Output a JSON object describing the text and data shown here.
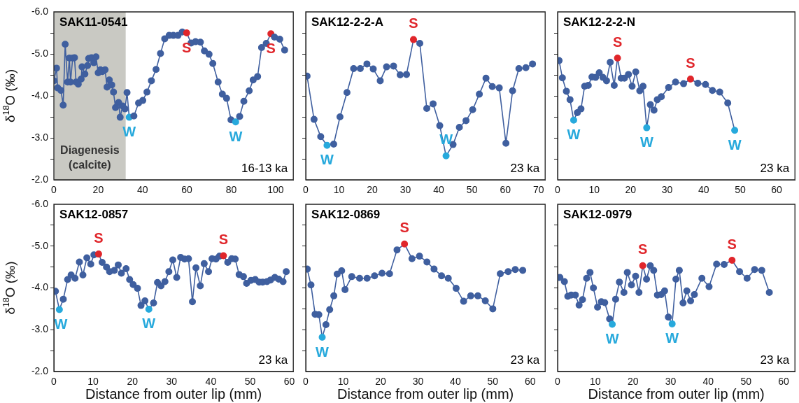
{
  "chart_data": [
    {
      "type": "line",
      "title": "SAK11-0541",
      "ylabel": "δ$^{18}$O (‰)",
      "marker": "circle",
      "xlim": [
        0,
        108
      ],
      "xticks": [
        0,
        20,
        40,
        60,
        80,
        100
      ],
      "ylim": [
        -2,
        -6
      ],
      "yticks": [
        {
          "value": -6,
          "label": "-6.0"
        },
        {
          "value": -5.5,
          "label": null
        },
        {
          "value": -5,
          "label": "-5.0"
        },
        {
          "value": -4.5,
          "label": null
        },
        {
          "value": -4,
          "label": "-4.0"
        },
        {
          "value": -3.5,
          "label": null
        },
        {
          "value": -3,
          "label": "-3.0"
        },
        {
          "value": -2.5,
          "label": null
        },
        {
          "value": -2,
          "label": "-2.0"
        }
      ],
      "bands": [
        {
          "axis": "x",
          "from": 0,
          "to": 32.4,
          "label": "Diagenesis (calcite)",
          "color": "#c9c9c3"
        }
      ],
      "annotations": [
        {
          "text": "S",
          "x": 59.9,
          "y": -5.5
        },
        {
          "text": "S",
          "x": 97.9,
          "y": -5.48
        },
        {
          "text": "W",
          "x": 34.0,
          "y": -3.49
        },
        {
          "text": "W",
          "x": 82.0,
          "y": -3.38
        },
        "16-13 ka"
      ],
      "series": [
        {
          "color": "#3f5f9f",
          "x": [
            0,
            1.2,
            1.7,
            3.2,
            4.2,
            5.1,
            6.2,
            7.0,
            7.5,
            8.5,
            9.3,
            10.0,
            11.0,
            12.3,
            12.7,
            14.0,
            15.2,
            15.7,
            17.0,
            18.0,
            19.0,
            20.0,
            21.0,
            21.9,
            23.1,
            24.0,
            25.0,
            26.1,
            26.9,
            27.8,
            29.2,
            29.9,
            31.0,
            32.1,
            33.0,
            34.0,
            36.1,
            38.2,
            40.1,
            42.0,
            44.0,
            46.1,
            48.1,
            50.0,
            52.0,
            53.9,
            56.0,
            57.9,
            59.9,
            61.9,
            63.9,
            66.1,
            67.9,
            70.0,
            71.7,
            74.1,
            76.0,
            77.9,
            79.9,
            82.0,
            83.8,
            85.7,
            88.1,
            89.9,
            91.9,
            93.7,
            95.8,
            97.9,
            99.5,
            101.9,
            104.1
          ],
          "values": [
            -4.36,
            -4.66,
            -4.19,
            -4.13,
            -3.78,
            -5.23,
            -4.33,
            -4.9,
            -4.33,
            -4.9,
            -4.91,
            -4.33,
            -4.28,
            -4.4,
            -4.69,
            -4.52,
            -4.72,
            -4.89,
            -4.91,
            -4.79,
            -4.93,
            -4.55,
            -4.62,
            -4.58,
            -4.62,
            -4.21,
            -4.38,
            -4.26,
            -4.09,
            -3.72,
            -3.84,
            -3.49,
            -3.76,
            -3.69,
            -4.08,
            -3.49,
            -3.52,
            -3.83,
            -3.89,
            -4.09,
            -4.36,
            -4.63,
            -5.01,
            -5.36,
            -5.44,
            -5.44,
            -5.44,
            -5.52,
            -5.5,
            -5.26,
            -5.29,
            -5.28,
            -5.07,
            -4.99,
            -4.77,
            -4.33,
            -4.04,
            -3.94,
            -3.43,
            -3.38,
            -3.51,
            -3.87,
            -4.12,
            -4.38,
            -4.46,
            -5.15,
            -5.25,
            -5.48,
            -5.4,
            -5.35,
            -5.09
          ],
          "colors": [
            "#3f5f9f",
            "#3f5f9f",
            "#3f5f9f",
            "#3f5f9f",
            "#3f5f9f",
            "#3f5f9f",
            "#3f5f9f",
            "#3f5f9f",
            "#3f5f9f",
            "#3f5f9f",
            "#3f5f9f",
            "#3f5f9f",
            "#3f5f9f",
            "#3f5f9f",
            "#3f5f9f",
            "#3f5f9f",
            "#3f5f9f",
            "#3f5f9f",
            "#3f5f9f",
            "#3f5f9f",
            "#3f5f9f",
            "#3f5f9f",
            "#3f5f9f",
            "#3f5f9f",
            "#3f5f9f",
            "#3f5f9f",
            "#3f5f9f",
            "#3f5f9f",
            "#3f5f9f",
            "#3f5f9f",
            "#3f5f9f",
            "#3f5f9f",
            "#3f5f9f",
            "#3f5f9f",
            "#3f5f9f",
            "#27a9dc",
            "#3f5f9f",
            "#3f5f9f",
            "#3f5f9f",
            "#3f5f9f",
            "#3f5f9f",
            "#3f5f9f",
            "#3f5f9f",
            "#3f5f9f",
            "#3f5f9f",
            "#3f5f9f",
            "#3f5f9f",
            "#3f5f9f",
            "#e0262b",
            "#3f5f9f",
            "#3f5f9f",
            "#3f5f9f",
            "#3f5f9f",
            "#3f5f9f",
            "#3f5f9f",
            "#3f5f9f",
            "#3f5f9f",
            "#3f5f9f",
            "#3f5f9f",
            "#27a9dc",
            "#3f5f9f",
            "#3f5f9f",
            "#3f5f9f",
            "#3f5f9f",
            "#3f5f9f",
            "#3f5f9f",
            "#3f5f9f",
            "#e0262b",
            "#3f5f9f",
            "#3f5f9f",
            "#3f5f9f"
          ]
        }
      ]
    },
    {
      "type": "line",
      "title": "SAK12-2-2-A",
      "marker": "circle",
      "tick_labels": "x",
      "xlim": [
        0,
        72
      ],
      "xticks": [
        0,
        10,
        20,
        30,
        40,
        50,
        60,
        70
      ],
      "ylim": [
        -2,
        -6
      ],
      "yticks": [
        {
          "value": -6,
          "label": null
        },
        {
          "value": -5.5,
          "label": null
        },
        {
          "value": -5,
          "label": null
        },
        {
          "value": -4.5,
          "label": null
        },
        {
          "value": -4,
          "label": null
        },
        {
          "value": -3.5,
          "label": null
        },
        {
          "value": -3,
          "label": null
        },
        {
          "value": -2.5,
          "label": null
        },
        {
          "value": -2,
          "label": null
        }
      ],
      "annotations": [
        {
          "text": "S",
          "x": 32.4,
          "y": -5.34
        },
        {
          "text": "W",
          "x": 6.4,
          "y": -2.82
        },
        {
          "text": "W",
          "x": 42.2,
          "y": -2.57
        },
        "23 ka"
      ],
      "series": [
        {
          "color": "#3f5f9f",
          "x": [
            0.4,
            2.5,
            4.5,
            6.4,
            8.4,
            10.3,
            12.4,
            14.4,
            16.4,
            18.4,
            20.3,
            22.4,
            24.3,
            26.4,
            28.4,
            30.3,
            32.4,
            34.3,
            36.4,
            38.3,
            40.3,
            42.2,
            44.3,
            46.2,
            48.2,
            50.2,
            52.2,
            54.2,
            56.1,
            58.2,
            60.2,
            62.2,
            64.1,
            66.2,
            68.2
          ],
          "values": [
            -4.47,
            -3.44,
            -3.03,
            -2.82,
            -2.85,
            -3.5,
            -4.08,
            -4.65,
            -4.65,
            -4.76,
            -4.64,
            -4.36,
            -4.69,
            -4.71,
            -4.5,
            -4.51,
            -5.34,
            -5.25,
            -3.7,
            -3.81,
            -3.29,
            -2.57,
            -2.84,
            -3.25,
            -3.41,
            -3.67,
            -4.04,
            -4.42,
            -4.22,
            -4.19,
            -2.87,
            -4.12,
            -4.65,
            -4.67,
            -4.76
          ],
          "colors": [
            "#3f5f9f",
            "#3f5f9f",
            "#3f5f9f",
            "#27a9dc",
            "#3f5f9f",
            "#3f5f9f",
            "#3f5f9f",
            "#3f5f9f",
            "#3f5f9f",
            "#3f5f9f",
            "#3f5f9f",
            "#3f5f9f",
            "#3f5f9f",
            "#3f5f9f",
            "#3f5f9f",
            "#3f5f9f",
            "#e0262b",
            "#3f5f9f",
            "#3f5f9f",
            "#3f5f9f",
            "#3f5f9f",
            "#27a9dc",
            "#3f5f9f",
            "#3f5f9f",
            "#3f5f9f",
            "#3f5f9f",
            "#3f5f9f",
            "#3f5f9f",
            "#3f5f9f",
            "#3f5f9f",
            "#3f5f9f",
            "#3f5f9f",
            "#3f5f9f",
            "#3f5f9f",
            "#3f5f9f"
          ]
        }
      ]
    },
    {
      "type": "line",
      "title": "SAK12-2-2-N",
      "marker": "circle",
      "tick_labels": "x",
      "xlim": [
        0,
        65
      ],
      "xticks": [
        0,
        10,
        20,
        30,
        40,
        50,
        60
      ],
      "ylim": [
        -2,
        -6
      ],
      "yticks": [
        {
          "value": -6,
          "label": null
        },
        {
          "value": -5.5,
          "label": null
        },
        {
          "value": -5,
          "label": null
        },
        {
          "value": -4.5,
          "label": null
        },
        {
          "value": -4,
          "label": null
        },
        {
          "value": -3.5,
          "label": null
        },
        {
          "value": -3,
          "label": null
        },
        {
          "value": -2.5,
          "label": null
        },
        {
          "value": -2,
          "label": null
        }
      ],
      "annotations": [
        {
          "text": "S",
          "x": 16.4,
          "y": -4.9
        },
        {
          "text": "S",
          "x": 36.4,
          "y": -4.4
        },
        {
          "text": "W",
          "x": 4.4,
          "y": -3.42
        },
        {
          "text": "W",
          "x": 24.4,
          "y": -3.24
        },
        {
          "text": "W",
          "x": 48.5,
          "y": -3.18
        },
        "23 ka"
      ],
      "series": [
        {
          "color": "#3f5f9f",
          "x": [
            0.4,
            1.3,
            2.4,
            3.4,
            4.4,
            5.4,
            6.4,
            7.4,
            8.4,
            9.4,
            10.4,
            11.4,
            12.4,
            13.4,
            14.4,
            15.5,
            16.4,
            17.4,
            18.3,
            19.4,
            20.4,
            21.4,
            22.5,
            23.4,
            24.4,
            25.4,
            26.4,
            27.3,
            28.4,
            30.4,
            32.3,
            34.5,
            36.4,
            38.4,
            40.5,
            42.4,
            44.4,
            46.6,
            48.5
          ],
          "values": [
            -4.84,
            -4.43,
            -4.11,
            -3.91,
            -3.42,
            -3.6,
            -3.69,
            -4.23,
            -4.25,
            -4.45,
            -4.44,
            -4.55,
            -4.44,
            -4.36,
            -4.8,
            -4.25,
            -4.9,
            -4.42,
            -4.42,
            -4.51,
            -4.23,
            -4.57,
            -4.12,
            -4.23,
            -3.24,
            -3.79,
            -3.66,
            -3.91,
            -3.98,
            -4.2,
            -4.33,
            -4.29,
            -4.4,
            -4.3,
            -4.27,
            -4.13,
            -4.09,
            -3.83,
            -3.18
          ],
          "colors": [
            "#3f5f9f",
            "#3f5f9f",
            "#3f5f9f",
            "#3f5f9f",
            "#27a9dc",
            "#3f5f9f",
            "#3f5f9f",
            "#3f5f9f",
            "#3f5f9f",
            "#3f5f9f",
            "#3f5f9f",
            "#3f5f9f",
            "#3f5f9f",
            "#3f5f9f",
            "#3f5f9f",
            "#3f5f9f",
            "#e0262b",
            "#3f5f9f",
            "#3f5f9f",
            "#3f5f9f",
            "#3f5f9f",
            "#3f5f9f",
            "#3f5f9f",
            "#3f5f9f",
            "#27a9dc",
            "#3f5f9f",
            "#3f5f9f",
            "#3f5f9f",
            "#3f5f9f",
            "#3f5f9f",
            "#3f5f9f",
            "#3f5f9f",
            "#e0262b",
            "#3f5f9f",
            "#3f5f9f",
            "#3f5f9f",
            "#3f5f9f",
            "#3f5f9f",
            "#27a9dc"
          ]
        }
      ]
    },
    {
      "type": "line",
      "title": "SAK12-0857",
      "ylabel": "δ$^{18}$O (‰)",
      "xlabel": "Distance from outer lip (mm)",
      "marker": "circle",
      "xlim": [
        0,
        61
      ],
      "xticks": [
        0,
        10,
        20,
        30,
        40,
        50,
        60
      ],
      "ylim": [
        -2,
        -6
      ],
      "yticks": [
        {
          "value": -6,
          "label": "-6.0"
        },
        {
          "value": -5.5,
          "label": null
        },
        {
          "value": -5,
          "label": "-5.0"
        },
        {
          "value": -4.5,
          "label": null
        },
        {
          "value": -4,
          "label": "-4.0"
        },
        {
          "value": -3.5,
          "label": null
        },
        {
          "value": -3,
          "label": "-3.0"
        },
        {
          "value": -2.5,
          "label": null
        },
        {
          "value": -2,
          "label": "-2.0"
        }
      ],
      "annotations": [
        {
          "text": "S",
          "x": 11.4,
          "y": -4.81
        },
        {
          "text": "S",
          "x": 43.2,
          "y": -4.77
        },
        {
          "text": "W",
          "x": 1.4,
          "y": -3.48
        },
        {
          "text": "W",
          "x": 24.2,
          "y": -3.49
        },
        "23 ka"
      ],
      "series": [
        {
          "color": "#3f5f9f",
          "x": [
            0.4,
            1.4,
            2.4,
            3.5,
            4.4,
            5.4,
            6.5,
            7.4,
            8.4,
            9.4,
            10.2,
            11.4,
            12.3,
            13.4,
            14.2,
            15.4,
            16.4,
            17.2,
            18.4,
            19.3,
            20.2,
            21.3,
            22.2,
            23.2,
            24.2,
            25.4,
            26.4,
            27.3,
            28.3,
            29.3,
            30.3,
            31.3,
            32.3,
            33.3,
            34.3,
            35.3,
            36.2,
            37.3,
            38.3,
            39.4,
            40.3,
            41.3,
            42.2,
            43.2,
            44.3,
            45.3,
            46.2,
            47.2,
            48.3,
            49.1,
            50.2,
            51.3,
            52.3,
            53.2,
            54.3,
            55.2,
            56.3,
            57.3,
            58.4,
            59.2
          ],
          "values": [
            -3.92,
            -3.48,
            -3.73,
            -4.2,
            -4.31,
            -4.23,
            -4.62,
            -4.31,
            -4.72,
            -4.57,
            -4.79,
            -4.81,
            -4.61,
            -4.5,
            -4.39,
            -4.42,
            -4.55,
            -4.35,
            -4.46,
            -4.2,
            -4.08,
            -3.99,
            -3.58,
            -3.69,
            -3.49,
            -3.64,
            -4.13,
            -4.05,
            -4.15,
            -4.39,
            -4.67,
            -4.25,
            -4.73,
            -4.69,
            -4.7,
            -3.67,
            -4.48,
            -4.05,
            -4.58,
            -4.39,
            -4.7,
            -4.69,
            -4.76,
            -4.77,
            -4.61,
            -4.7,
            -4.69,
            -4.32,
            -4.27,
            -4.11,
            -4.18,
            -4.2,
            -4.14,
            -4.14,
            -4.15,
            -4.19,
            -4.25,
            -4.21,
            -4.15,
            -4.39
          ],
          "colors": [
            "#3f5f9f",
            "#27a9dc",
            "#3f5f9f",
            "#3f5f9f",
            "#3f5f9f",
            "#3f5f9f",
            "#3f5f9f",
            "#3f5f9f",
            "#3f5f9f",
            "#3f5f9f",
            "#3f5f9f",
            "#e0262b",
            "#3f5f9f",
            "#3f5f9f",
            "#3f5f9f",
            "#3f5f9f",
            "#3f5f9f",
            "#3f5f9f",
            "#3f5f9f",
            "#3f5f9f",
            "#3f5f9f",
            "#3f5f9f",
            "#3f5f9f",
            "#3f5f9f",
            "#27a9dc",
            "#3f5f9f",
            "#3f5f9f",
            "#3f5f9f",
            "#3f5f9f",
            "#3f5f9f",
            "#3f5f9f",
            "#3f5f9f",
            "#3f5f9f",
            "#3f5f9f",
            "#3f5f9f",
            "#3f5f9f",
            "#3f5f9f",
            "#3f5f9f",
            "#3f5f9f",
            "#3f5f9f",
            "#3f5f9f",
            "#3f5f9f",
            "#3f5f9f",
            "#e0262b",
            "#3f5f9f",
            "#3f5f9f",
            "#3f5f9f",
            "#3f5f9f",
            "#3f5f9f",
            "#3f5f9f",
            "#3f5f9f",
            "#3f5f9f",
            "#3f5f9f",
            "#3f5f9f",
            "#3f5f9f",
            "#3f5f9f",
            "#3f5f9f",
            "#3f5f9f",
            "#3f5f9f",
            "#3f5f9f"
          ]
        }
      ]
    },
    {
      "type": "line",
      "title": "SAK12-0869",
      "xlabel": "Distance from outer lip (mm)",
      "marker": "circle",
      "tick_labels": "x",
      "xlim": [
        0,
        64
      ],
      "xticks": [
        0,
        10,
        20,
        30,
        40,
        50,
        60
      ],
      "ylim": [
        -2,
        -6
      ],
      "yticks": [
        {
          "value": -6,
          "label": null
        },
        {
          "value": -5.5,
          "label": null
        },
        {
          "value": -5,
          "label": null
        },
        {
          "value": -4.5,
          "label": null
        },
        {
          "value": -4,
          "label": null
        },
        {
          "value": -3.5,
          "label": null
        },
        {
          "value": -3,
          "label": null
        },
        {
          "value": -2.5,
          "label": null
        },
        {
          "value": -2,
          "label": null
        }
      ],
      "annotations": [
        {
          "text": "S",
          "x": 26.4,
          "y": -5.05
        },
        {
          "text": "W",
          "x": 4.4,
          "y": -2.82
        },
        "23 ka"
      ],
      "series": [
        {
          "color": "#3f5f9f",
          "x": [
            0.4,
            1.4,
            2.5,
            3.5,
            4.4,
            5.4,
            6.4,
            7.5,
            8.4,
            9.6,
            10.5,
            12.3,
            14.4,
            16.4,
            18.4,
            20.4,
            22.4,
            24.4,
            26.4,
            28.4,
            30.4,
            32.4,
            34.3,
            36.3,
            38.1,
            40.2,
            42.2,
            44.1,
            46.0,
            48.0,
            50.0,
            52.0,
            54.1,
            56.0,
            58.0
          ],
          "values": [
            -4.45,
            -4.07,
            -3.37,
            -3.36,
            -2.82,
            -3.12,
            -3.48,
            -3.81,
            -4.33,
            -4.41,
            -3.96,
            -4.27,
            -4.23,
            -4.23,
            -4.29,
            -4.35,
            -4.34,
            -4.91,
            -5.05,
            -4.7,
            -4.76,
            -4.62,
            -4.45,
            -4.29,
            -4.23,
            -3.99,
            -3.68,
            -3.81,
            -3.81,
            -3.69,
            -3.5,
            -4.34,
            -4.39,
            -4.44,
            -4.42
          ],
          "colors": [
            "#3f5f9f",
            "#3f5f9f",
            "#3f5f9f",
            "#3f5f9f",
            "#27a9dc",
            "#3f5f9f",
            "#3f5f9f",
            "#3f5f9f",
            "#3f5f9f",
            "#3f5f9f",
            "#3f5f9f",
            "#3f5f9f",
            "#3f5f9f",
            "#3f5f9f",
            "#3f5f9f",
            "#3f5f9f",
            "#3f5f9f",
            "#3f5f9f",
            "#e0262b",
            "#3f5f9f",
            "#3f5f9f",
            "#3f5f9f",
            "#3f5f9f",
            "#3f5f9f",
            "#3f5f9f",
            "#3f5f9f",
            "#3f5f9f",
            "#3f5f9f",
            "#3f5f9f",
            "#3f5f9f",
            "#3f5f9f",
            "#3f5f9f",
            "#3f5f9f",
            "#3f5f9f",
            "#3f5f9f"
          ]
        }
      ]
    },
    {
      "type": "line",
      "title": "SAK12-0979",
      "xlabel": "Distance from outer lip (mm)",
      "marker": "circle",
      "tick_labels": "x",
      "xlim": [
        0,
        63
      ],
      "xticks": [
        0,
        10,
        20,
        30,
        40,
        50,
        60
      ],
      "ylim": [
        -2,
        -6
      ],
      "yticks": [
        {
          "value": -6,
          "label": null
        },
        {
          "value": -5.5,
          "label": null
        },
        {
          "value": -5,
          "label": null
        },
        {
          "value": -4.5,
          "label": null
        },
        {
          "value": -4,
          "label": null
        },
        {
          "value": -3.5,
          "label": null
        },
        {
          "value": -3,
          "label": null
        },
        {
          "value": -2.5,
          "label": null
        },
        {
          "value": -2,
          "label": null
        }
      ],
      "annotations": [
        {
          "text": "S",
          "x": 22.6,
          "y": -4.53
        },
        {
          "text": "S",
          "x": 46.3,
          "y": -4.66
        },
        {
          "text": "W",
          "x": 14.5,
          "y": -3.13
        },
        {
          "text": "W",
          "x": 30.4,
          "y": -3.14
        },
        "23 ka"
      ],
      "series": [
        {
          "color": "#3f5f9f",
          "x": [
            0.6,
            1.8,
            2.7,
            3.6,
            4.7,
            5.7,
            6.6,
            7.7,
            8.6,
            9.5,
            10.6,
            11.6,
            12.5,
            13.8,
            14.5,
            15.4,
            16.4,
            17.6,
            18.5,
            19.6,
            20.7,
            21.6,
            22.6,
            23.6,
            24.6,
            25.5,
            26.5,
            27.5,
            28.4,
            29.4,
            30.4,
            31.4,
            32.3,
            33.3,
            34.3,
            35.3,
            36.3,
            38.3,
            40.2,
            42.2,
            44.2,
            46.3,
            48.3,
            50.3,
            52.3,
            54.2,
            56.2
          ],
          "values": [
            -4.25,
            -4.15,
            -3.8,
            -3.83,
            -3.83,
            -3.59,
            -3.72,
            -4.23,
            -4.37,
            -4.0,
            -3.54,
            -3.67,
            -3.65,
            -3.26,
            -3.13,
            -3.73,
            -4.14,
            -3.89,
            -4.37,
            -4.07,
            -4.28,
            -3.89,
            -4.53,
            -4.21,
            -4.53,
            -4.42,
            -3.83,
            -3.84,
            -3.93,
            -3.3,
            -3.14,
            -4.21,
            -4.42,
            -3.64,
            -3.93,
            -3.69,
            -3.84,
            -4.23,
            -4.03,
            -4.57,
            -4.56,
            -4.66,
            -4.39,
            -4.23,
            -4.44,
            -4.42,
            -3.89
          ],
          "colors": [
            "#3f5f9f",
            "#3f5f9f",
            "#3f5f9f",
            "#3f5f9f",
            "#3f5f9f",
            "#3f5f9f",
            "#3f5f9f",
            "#3f5f9f",
            "#3f5f9f",
            "#3f5f9f",
            "#3f5f9f",
            "#3f5f9f",
            "#3f5f9f",
            "#3f5f9f",
            "#27a9dc",
            "#3f5f9f",
            "#3f5f9f",
            "#3f5f9f",
            "#3f5f9f",
            "#3f5f9f",
            "#3f5f9f",
            "#3f5f9f",
            "#e0262b",
            "#3f5f9f",
            "#3f5f9f",
            "#3f5f9f",
            "#3f5f9f",
            "#3f5f9f",
            "#3f5f9f",
            "#3f5f9f",
            "#27a9dc",
            "#3f5f9f",
            "#3f5f9f",
            "#3f5f9f",
            "#3f5f9f",
            "#3f5f9f",
            "#3f5f9f",
            "#3f5f9f",
            "#3f5f9f",
            "#3f5f9f",
            "#3f5f9f",
            "#e0262b",
            "#3f5f9f",
            "#3f5f9f",
            "#3f5f9f",
            "#3f5f9f",
            "#3f5f9f"
          ]
        }
      ]
    }
  ]
}
